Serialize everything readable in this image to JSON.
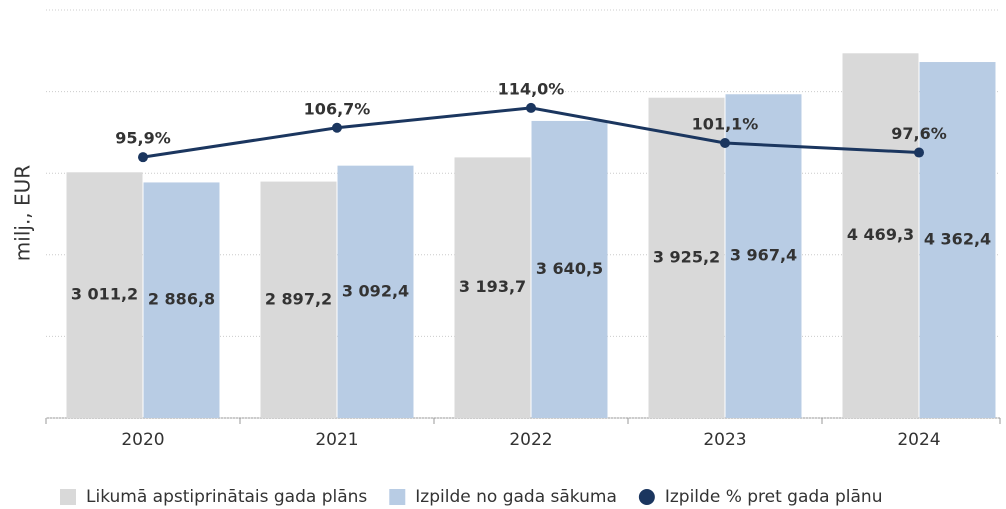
{
  "chart_data": {
    "type": "bar",
    "y_label": "milj., EUR",
    "categories": [
      "2020",
      "2021",
      "2022",
      "2023",
      "2024"
    ],
    "series": [
      {
        "name": "Likumā apstiprinātais gada plāns",
        "type": "bar",
        "color": "#d9d9d9",
        "values": [
          3011.2,
          2897.2,
          3193.7,
          3925.2,
          4469.3
        ],
        "value_labels": [
          "3 011,2",
          "2 897,2",
          "3 193,7",
          "3 925,2",
          "4 469,3"
        ]
      },
      {
        "name": "Izpilde no gada sākuma",
        "type": "bar",
        "color": "#b8cce4",
        "values": [
          2886.8,
          3092.4,
          3640.5,
          3967.4,
          4362.4
        ],
        "value_labels": [
          "2 886,8",
          "3 092,4",
          "3 640,5",
          "3 967,4",
          "4 362,4"
        ]
      },
      {
        "name": "Izpilde % pret gada plānu",
        "type": "line",
        "axis": "y2",
        "color": "#1b365f",
        "values": [
          95.9,
          106.7,
          114.0,
          101.1,
          97.6
        ],
        "value_labels": [
          "95,9%",
          "106,7%",
          "114,0%",
          "101,1%",
          "97,6%"
        ]
      }
    ],
    "ylim": [
      0,
      5000
    ],
    "yticks": [
      0,
      1000,
      2000,
      3000,
      4000,
      5000
    ],
    "y2lim": [
      0,
      150
    ],
    "grid": true,
    "legend": "bottom"
  }
}
